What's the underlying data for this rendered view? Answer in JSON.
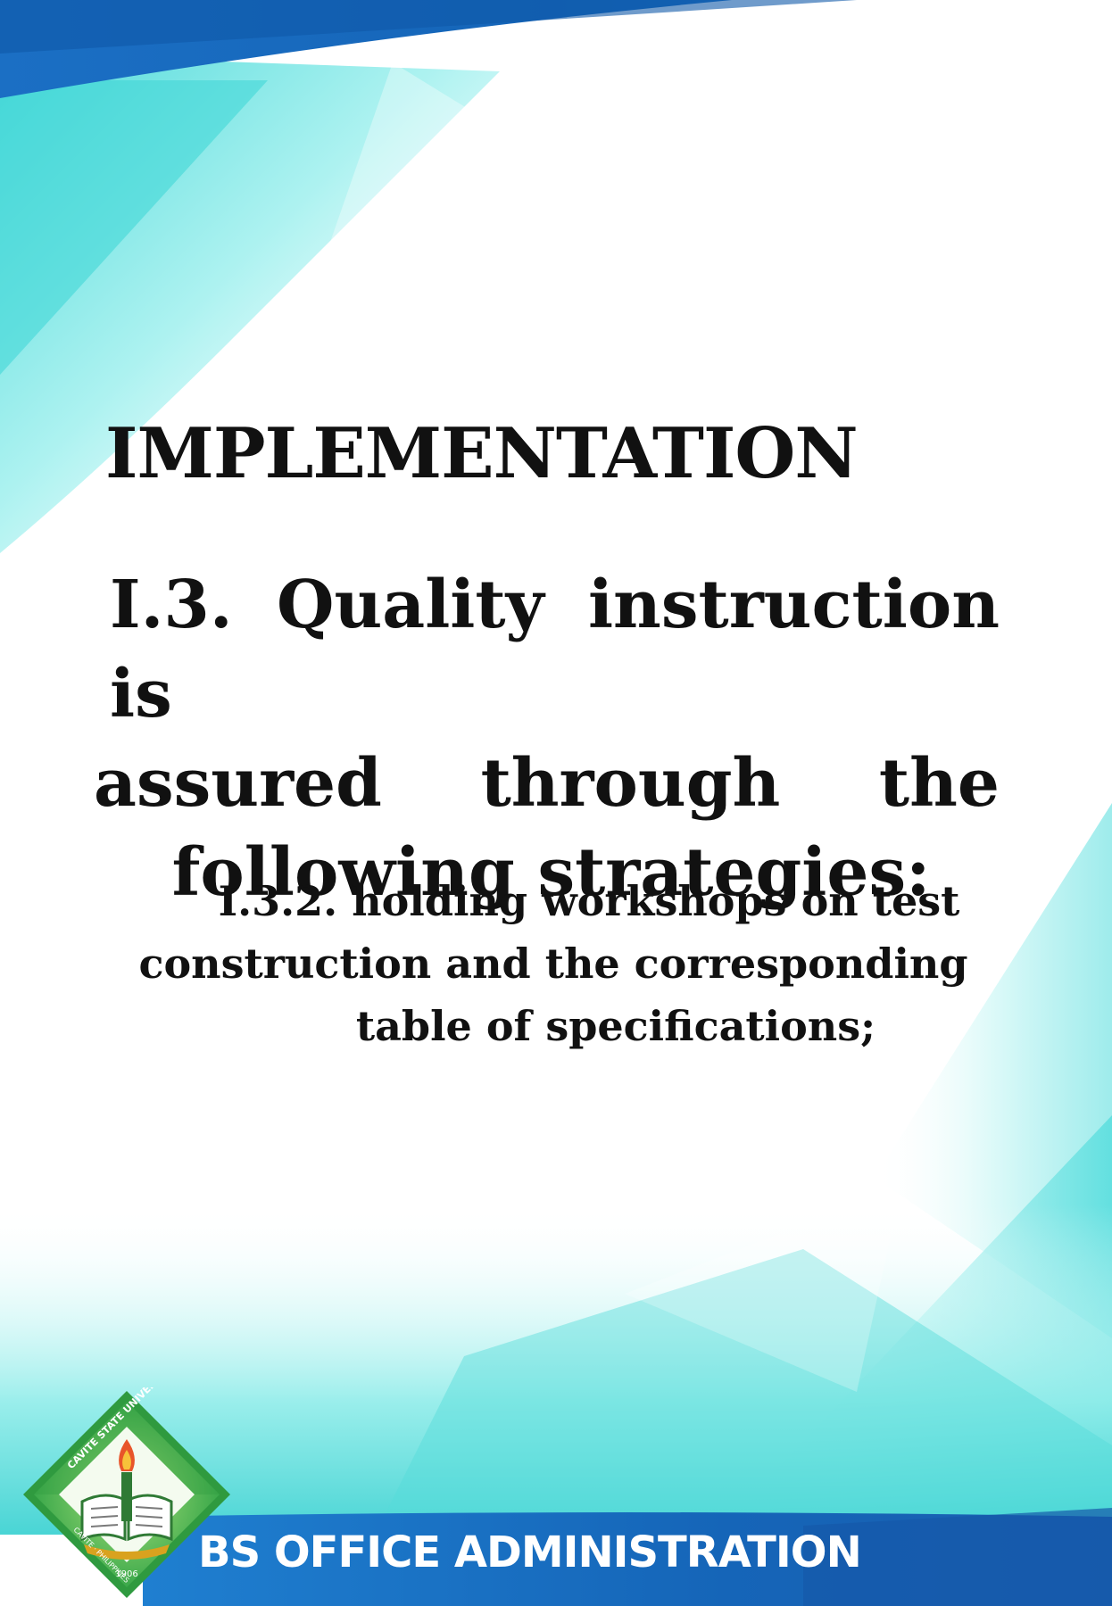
{
  "slide": {
    "heading": "IMPLEMENTATION",
    "main_statement": {
      "line1": "I.3. Quality instruction is",
      "line2": "assured through the",
      "line3": "following strategies:"
    },
    "sub_statement": {
      "line1": "I.3.2. holding workshops on test",
      "line2": "construction and the corresponding",
      "line3": "table of specifications;"
    }
  },
  "footer": {
    "label": "BS OFFICE ADMINISTRATION",
    "seal_text_top": "CAVITE STATE UNIVERSITY",
    "seal_text_bottom": "CAVITE · PHILIPPINES",
    "seal_year": "1906",
    "seal_icon": "university-seal-icon"
  },
  "colors": {
    "band_blue": "#1565b8",
    "cyan": "#3fd6d6",
    "teal": "#2ec4c4",
    "seal_green": "#3aa84a",
    "text": "#111111"
  }
}
